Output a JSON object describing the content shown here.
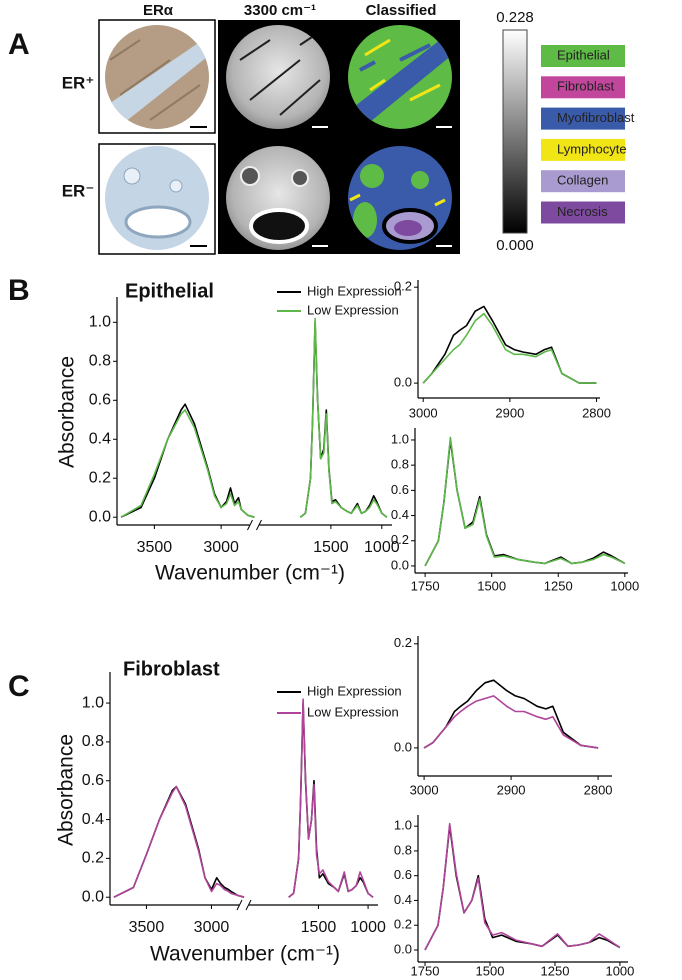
{
  "panel_a": {
    "label": "A",
    "columns": [
      "ERα",
      "3300 cm⁻¹",
      "Classified"
    ],
    "rows": [
      "ER⁺",
      "ER⁻"
    ],
    "colorbar": {
      "ylim": [
        0,
        0.228
      ],
      "yticks": [
        0.228,
        {
          "value": 0,
          "label": "0.000"
        }
      ]
    },
    "legend": [
      {
        "name": "Epithelial",
        "color": "#5dbb46"
      },
      {
        "name": "Fibroblast",
        "color": "#c2469c"
      },
      {
        "name": "Myofibroblast",
        "color": "#3a5aaa"
      },
      {
        "name": "Lymphocyte",
        "color": "#f2e516"
      },
      {
        "name": "Collagen",
        "color": "#a99bd0"
      },
      {
        "name": "Necrosis",
        "color": "#7e4aa0"
      }
    ]
  },
  "chart_data": [
    {
      "type": "line",
      "panel": "B",
      "title": "Epithelial",
      "ylabel": "Absorbance",
      "xlabel": "Wavenumber (cm⁻¹)",
      "xlim": [
        3780,
        900
      ],
      "xbreak": [
        2750,
        2250
      ],
      "xticks": [
        3500,
        3000,
        1500,
        1000
      ],
      "ylim": [
        -0.04,
        1.13
      ],
      "yticks": [
        {
          "value": 0,
          "label": "0.0"
        },
        0.2,
        0.4,
        0.6,
        0.8,
        {
          "value": 1,
          "label": "1.0"
        }
      ],
      "x": [
        3750,
        3600,
        3500,
        3400,
        3300,
        3270,
        3200,
        3100,
        3050,
        3000,
        2960,
        2930,
        2900,
        2870,
        2850,
        2800,
        2750,
        1800,
        1750,
        1700,
        1680,
        1655,
        1630,
        1600,
        1570,
        1545,
        1520,
        1490,
        1455,
        1400,
        1340,
        1300,
        1240,
        1200,
        1160,
        1120,
        1080,
        1050,
        1000,
        950
      ],
      "series": [
        {
          "name": "High Expression",
          "color": "#000000",
          "values": [
            0.0,
            0.05,
            0.2,
            0.4,
            0.55,
            0.58,
            0.48,
            0.25,
            0.12,
            0.05,
            0.08,
            0.15,
            0.07,
            0.1,
            0.04,
            0.01,
            0.0,
            0.0,
            0.02,
            0.2,
            0.5,
            1.0,
            0.6,
            0.3,
            0.35,
            0.55,
            0.25,
            0.08,
            0.09,
            0.05,
            0.03,
            0.02,
            0.07,
            0.02,
            0.03,
            0.06,
            0.11,
            0.08,
            0.02,
            0.0
          ]
        },
        {
          "name": "Low Expression",
          "color": "#5cb848",
          "values": [
            0.0,
            0.06,
            0.22,
            0.4,
            0.53,
            0.55,
            0.46,
            0.24,
            0.11,
            0.05,
            0.07,
            0.12,
            0.06,
            0.08,
            0.04,
            0.01,
            0.0,
            0.0,
            0.02,
            0.2,
            0.5,
            1.02,
            0.6,
            0.3,
            0.33,
            0.53,
            0.24,
            0.07,
            0.08,
            0.05,
            0.03,
            0.02,
            0.06,
            0.02,
            0.03,
            0.05,
            0.09,
            0.07,
            0.02,
            0.0
          ]
        }
      ]
    },
    {
      "type": "line",
      "xlim": [
        3006,
        2796
      ],
      "xticks": [
        3000,
        2900,
        2800
      ],
      "ylim": [
        -0.031,
        0.215
      ],
      "yticks": [
        {
          "value": 0,
          "label": "0.0"
        },
        0.2
      ],
      "x": [
        3000,
        2990,
        2975,
        2965,
        2958,
        2950,
        2940,
        2930,
        2920,
        2905,
        2895,
        2885,
        2870,
        2860,
        2852,
        2840,
        2820,
        2800
      ],
      "series": [
        {
          "color": "#000000",
          "values": [
            0.0,
            0.02,
            0.06,
            0.1,
            0.11,
            0.12,
            0.15,
            0.16,
            0.13,
            0.08,
            0.07,
            0.065,
            0.06,
            0.07,
            0.075,
            0.02,
            0.0,
            0.0
          ]
        },
        {
          "color": "#5cb848",
          "values": [
            0.0,
            0.02,
            0.05,
            0.07,
            0.08,
            0.1,
            0.13,
            0.145,
            0.12,
            0.07,
            0.06,
            0.06,
            0.055,
            0.065,
            0.07,
            0.02,
            0.0,
            0.0
          ]
        }
      ]
    },
    {
      "type": "line",
      "xlim": [
        1788,
        988
      ],
      "xticks": [
        1750,
        1500,
        1250,
        1000
      ],
      "ylim": [
        -0.056,
        1.095
      ],
      "yticks": [
        {
          "value": 0,
          "label": "0.0"
        },
        0.2,
        0.4,
        0.6,
        0.8,
        {
          "value": 1,
          "label": "1.0"
        }
      ],
      "x": [
        1750,
        1700,
        1680,
        1655,
        1630,
        1600,
        1570,
        1545,
        1520,
        1490,
        1455,
        1400,
        1340,
        1300,
        1240,
        1200,
        1160,
        1120,
        1080,
        1050,
        1000
      ],
      "series": [
        {
          "color": "#000000",
          "values": [
            0.0,
            0.2,
            0.5,
            1.0,
            0.6,
            0.3,
            0.35,
            0.55,
            0.25,
            0.08,
            0.09,
            0.05,
            0.03,
            0.02,
            0.07,
            0.02,
            0.03,
            0.06,
            0.11,
            0.08,
            0.02
          ]
        },
        {
          "color": "#5cb848",
          "values": [
            0.0,
            0.2,
            0.5,
            1.02,
            0.6,
            0.3,
            0.33,
            0.53,
            0.24,
            0.07,
            0.08,
            0.05,
            0.03,
            0.02,
            0.06,
            0.02,
            0.03,
            0.05,
            0.09,
            0.07,
            0.02
          ]
        }
      ]
    },
    {
      "type": "line",
      "panel": "C",
      "title": "Fibroblast",
      "ylabel": "Absorbance",
      "xlabel": "Wavenumber (cm⁻¹)",
      "xlim": [
        3780,
        900
      ],
      "xbreak": [
        2750,
        2250
      ],
      "xticks": [
        3500,
        3000,
        1500,
        1000
      ],
      "ylim": [
        -0.04,
        1.16
      ],
      "yticks": [
        {
          "value": 0,
          "label": "0.0"
        },
        0.2,
        0.4,
        0.6,
        0.8,
        {
          "value": 1,
          "label": "1.0"
        }
      ],
      "x": [
        3750,
        3600,
        3500,
        3400,
        3300,
        3270,
        3200,
        3100,
        3050,
        3000,
        2960,
        2930,
        2900,
        2870,
        2850,
        2800,
        2750,
        1800,
        1750,
        1700,
        1680,
        1655,
        1630,
        1600,
        1570,
        1545,
        1520,
        1490,
        1455,
        1400,
        1340,
        1300,
        1240,
        1200,
        1160,
        1120,
        1080,
        1050,
        1000,
        950
      ],
      "series": [
        {
          "name": "High Expression",
          "color": "#000000",
          "values": [
            0.0,
            0.05,
            0.22,
            0.4,
            0.55,
            0.57,
            0.48,
            0.25,
            0.1,
            0.04,
            0.1,
            0.07,
            0.05,
            0.04,
            0.03,
            0.01,
            0.0,
            0.0,
            0.02,
            0.2,
            0.5,
            1.0,
            0.6,
            0.3,
            0.4,
            0.6,
            0.25,
            0.1,
            0.12,
            0.07,
            0.05,
            0.03,
            0.12,
            0.03,
            0.04,
            0.06,
            0.1,
            0.08,
            0.02,
            0.0
          ]
        },
        {
          "name": "Low Expression",
          "color": "#b0449a",
          "values": [
            0.0,
            0.05,
            0.22,
            0.4,
            0.54,
            0.57,
            0.47,
            0.24,
            0.1,
            0.03,
            0.07,
            0.06,
            0.04,
            0.03,
            0.02,
            0.01,
            0.0,
            0.0,
            0.02,
            0.2,
            0.5,
            1.02,
            0.62,
            0.3,
            0.4,
            0.58,
            0.22,
            0.12,
            0.14,
            0.08,
            0.05,
            0.03,
            0.13,
            0.03,
            0.04,
            0.06,
            0.13,
            0.09,
            0.02,
            0.0
          ]
        }
      ]
    },
    {
      "type": "line",
      "xlim": [
        3007,
        2784
      ],
      "xticks": [
        3000,
        2900,
        2800
      ],
      "ylim": [
        -0.054,
        0.215
      ],
      "yticks": [
        {
          "value": 0,
          "label": "0.0"
        },
        0.2
      ],
      "x": [
        3000,
        2990,
        2975,
        2965,
        2958,
        2950,
        2940,
        2930,
        2920,
        2905,
        2895,
        2885,
        2870,
        2860,
        2852,
        2840,
        2820,
        2800
      ],
      "series": [
        {
          "color": "#000000",
          "values": [
            0.0,
            0.01,
            0.04,
            0.07,
            0.08,
            0.09,
            0.11,
            0.125,
            0.13,
            0.11,
            0.1,
            0.095,
            0.08,
            0.075,
            0.08,
            0.03,
            0.005,
            0.0
          ]
        },
        {
          "color": "#b0449a",
          "values": [
            0.0,
            0.01,
            0.04,
            0.06,
            0.07,
            0.08,
            0.09,
            0.095,
            0.1,
            0.08,
            0.07,
            0.07,
            0.06,
            0.055,
            0.06,
            0.025,
            0.005,
            0.0
          ]
        }
      ]
    },
    {
      "type": "line",
      "xlim": [
        1777,
        969
      ],
      "xticks": [
        1750,
        1500,
        1250,
        1000
      ],
      "ylim": [
        -0.097,
        1.09
      ],
      "yticks": [
        {
          "value": 0,
          "label": "0.0"
        },
        0.2,
        0.4,
        0.6,
        0.8,
        {
          "value": 1,
          "label": "1.0"
        }
      ],
      "x": [
        1750,
        1700,
        1680,
        1655,
        1630,
        1600,
        1570,
        1545,
        1520,
        1490,
        1455,
        1400,
        1340,
        1300,
        1240,
        1200,
        1160,
        1120,
        1080,
        1050,
        1000
      ],
      "series": [
        {
          "color": "#000000",
          "values": [
            0.0,
            0.2,
            0.5,
            1.0,
            0.6,
            0.3,
            0.4,
            0.6,
            0.25,
            0.1,
            0.12,
            0.07,
            0.05,
            0.03,
            0.12,
            0.03,
            0.04,
            0.06,
            0.1,
            0.08,
            0.02
          ]
        },
        {
          "color": "#b0449a",
          "values": [
            0.0,
            0.2,
            0.5,
            1.02,
            0.62,
            0.3,
            0.4,
            0.58,
            0.22,
            0.12,
            0.14,
            0.08,
            0.05,
            0.03,
            0.13,
            0.03,
            0.04,
            0.06,
            0.13,
            0.09,
            0.02
          ]
        }
      ]
    }
  ]
}
